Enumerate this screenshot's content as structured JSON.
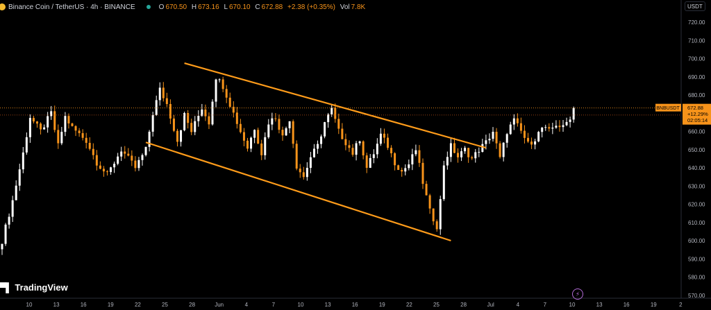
{
  "header": {
    "symbol_title": "Binance Coin / TetherUS · 4h · BINANCE",
    "status_color": "#26a69a",
    "open_label": "O",
    "open": "670.50",
    "high_label": "H",
    "high": "673.16",
    "low_label": "L",
    "low": "670.10",
    "close_label": "C",
    "close": "672.88",
    "change": "+2.38 (+0.35%)",
    "volume_label": "Vol",
    "volume": "7.8K"
  },
  "currency_button": "USDT",
  "logo_text": "TradingView",
  "colors": {
    "bullish": "#ffffff",
    "bearish": "#f7931a",
    "channel": "#ff9c1a",
    "price_line": "#f7931a",
    "background": "#000000"
  },
  "price_label": {
    "symbol": "BNBUSDT",
    "price": "672.88",
    "change_pct": "+12.29%",
    "countdown": "02:05:14"
  },
  "chart_data": {
    "type": "candlestick",
    "timeframe": "4h",
    "ylim": [
      570,
      725
    ],
    "grid": false,
    "y_ticks": [
      "720.00",
      "710.00",
      "700.00",
      "690.00",
      "680.00",
      "670.00",
      "660.00",
      "650.00",
      "640.00",
      "630.00",
      "620.00",
      "610.00",
      "600.00",
      "590.00",
      "580.00",
      "570.00"
    ],
    "x_ticks": [
      "10",
      "13",
      "16",
      "19",
      "22",
      "25",
      "28",
      "Jun",
      "4",
      "7",
      "10",
      "13",
      "16",
      "19",
      "22",
      "25",
      "28",
      "Jul",
      "4",
      "7",
      "10",
      "13",
      "16",
      "19",
      "2"
    ],
    "path_points": [
      [
        0,
        600
      ],
      [
        3,
        622
      ],
      [
        6,
        648
      ],
      [
        8,
        668
      ],
      [
        11,
        660
      ],
      [
        14,
        670
      ],
      [
        16,
        652
      ],
      [
        18,
        668
      ],
      [
        20,
        662
      ],
      [
        24,
        655
      ],
      [
        27,
        643
      ],
      [
        30,
        636
      ],
      [
        34,
        650
      ],
      [
        38,
        640
      ],
      [
        41,
        650
      ],
      [
        43,
        670
      ],
      [
        45,
        683
      ],
      [
        47,
        675
      ],
      [
        50,
        655
      ],
      [
        52,
        669
      ],
      [
        54,
        660
      ],
      [
        57,
        673
      ],
      [
        59,
        665
      ],
      [
        61,
        690
      ],
      [
        63,
        685
      ],
      [
        66,
        670
      ],
      [
        68,
        660
      ],
      [
        70,
        651
      ],
      [
        72,
        662
      ],
      [
        74,
        648
      ],
      [
        76,
        665
      ],
      [
        78,
        668
      ],
      [
        80,
        657
      ],
      [
        82,
        667
      ],
      [
        84,
        641
      ],
      [
        86,
        635
      ],
      [
        88,
        646
      ],
      [
        90,
        652
      ],
      [
        92,
        665
      ],
      [
        94,
        672
      ],
      [
        96,
        660
      ],
      [
        98,
        654
      ],
      [
        100,
        648
      ],
      [
        102,
        656
      ],
      [
        104,
        640
      ],
      [
        106,
        648
      ],
      [
        108,
        658
      ],
      [
        110,
        652
      ],
      [
        112,
        643
      ],
      [
        114,
        638
      ],
      [
        116,
        642
      ],
      [
        118,
        650
      ],
      [
        120,
        632
      ],
      [
        122,
        616
      ],
      [
        124,
        608
      ],
      [
        125,
        622
      ],
      [
        126,
        642
      ],
      [
        128,
        652
      ],
      [
        130,
        646
      ],
      [
        132,
        650
      ],
      [
        134,
        645
      ],
      [
        136,
        650
      ],
      [
        138,
        654
      ],
      [
        140,
        660
      ],
      [
        142,
        645
      ],
      [
        144,
        660
      ],
      [
        146,
        666
      ],
      [
        148,
        660
      ],
      [
        150,
        653
      ],
      [
        152,
        656
      ],
      [
        154,
        662
      ],
      [
        156,
        660
      ],
      [
        158,
        664
      ],
      [
        160,
        662
      ],
      [
        162,
        668
      ],
      [
        163,
        672.88
      ]
    ],
    "annotations": [
      {
        "type": "trendline",
        "label": "upper channel",
        "points": [
          [
            52,
            697.5
          ],
          [
            138,
            651
          ]
        ]
      },
      {
        "type": "trendline",
        "label": "lower channel",
        "points": [
          [
            41,
            654
          ],
          [
            128,
            600
          ]
        ]
      }
    ],
    "last_price": 672.88,
    "reference_price": 669
  }
}
